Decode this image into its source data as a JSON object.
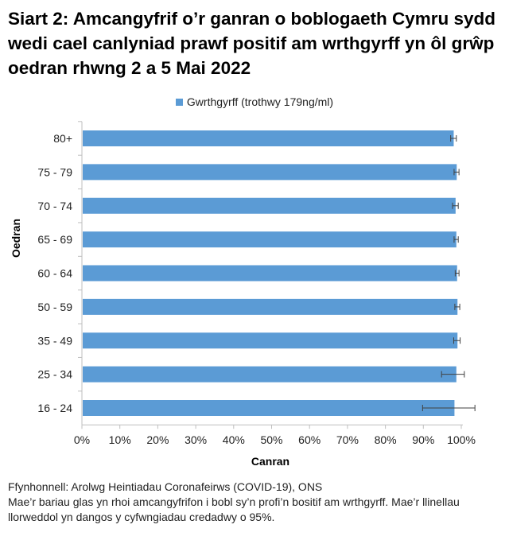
{
  "title": "Siart 2: Amcangyfrif o’r ganran o boblogaeth Cymru sydd wedi cael canlyniad prawf positif am wrthgyrff yn ôl grŵp oedran rhwng 2 a 5 Mai 2022",
  "footer": {
    "source": "Ffynhonnell: Arolwg Heintiadau Coronafeirws (COVID-19), ONS",
    "note": "Mae’r bariau glas yn rhoi amcangyfrifon i bobl sy’n profi’n bositif am wrthgyrff. Mae’r llinellau llorweddol yn dangos y cyfwngiadau credadwy o 95%."
  },
  "chart_data": {
    "type": "bar",
    "orientation": "horizontal",
    "title": "Siart 2: Amcangyfrif o’r ganran o boblogaeth Cymru sydd wedi cael canlyniad prawf positif am wrthgyrff yn ôl grŵp oedran rhwng 2 a 5 Mai 2022",
    "xlabel": "Canran",
    "ylabel": "Oedran",
    "legend_position": "top",
    "xlim": [
      0,
      100
    ],
    "x_ticks": [
      "0%",
      "10%",
      "20%",
      "30%",
      "40%",
      "50%",
      "60%",
      "70%",
      "80%",
      "90%",
      "100%"
    ],
    "categories": [
      "80+",
      "75 - 79",
      "70 - 74",
      "65 - 69",
      "60 - 64",
      "50 - 59",
      "35 - 49",
      "25 - 34",
      "16 - 24"
    ],
    "series": [
      {
        "name": "Gwrthgyrff (trothwy 179ng/ml)",
        "color": "#5b9bd5",
        "values": [
          98.0,
          98.8,
          98.5,
          98.7,
          98.9,
          99.0,
          99.0,
          98.7,
          98.2
        ],
        "ci_lower": [
          97.2,
          98.1,
          97.7,
          98.1,
          98.4,
          98.3,
          98.0,
          94.8,
          89.8
        ],
        "ci_upper": [
          98.7,
          99.4,
          99.2,
          99.2,
          99.4,
          99.6,
          99.7,
          100.8,
          103.6
        ]
      }
    ]
  }
}
